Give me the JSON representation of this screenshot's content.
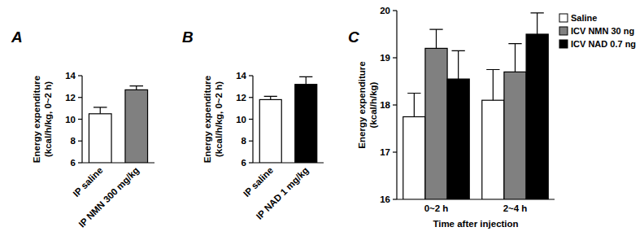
{
  "chart_data": [
    {
      "type": "bar",
      "title": "A",
      "y_label": "Energy expenditure\n(kcal/h/kg, 0~2 h)",
      "categories": [
        "IP saline",
        "IP NMN 300 mg/kg"
      ],
      "values": [
        10.5,
        12.7
      ],
      "errors": [
        0.6,
        0.35
      ],
      "colors": [
        "#ffffff",
        "#808080"
      ],
      "ylim": [
        6,
        14
      ],
      "yticks": [
        6,
        8,
        10,
        12,
        14
      ],
      "grid": false
    },
    {
      "type": "bar",
      "title": "B",
      "y_label": "Energy expenditure\n(kcal/h/kg, 0~2 h)",
      "categories": [
        "IP saline",
        "IP NAD 1 mg/kg"
      ],
      "values": [
        11.8,
        13.2
      ],
      "errors": [
        0.3,
        0.7
      ],
      "colors": [
        "#ffffff",
        "#000000"
      ],
      "ylim": [
        6,
        14
      ],
      "yticks": [
        6,
        8,
        10,
        12,
        14
      ],
      "grid": false
    },
    {
      "type": "bar",
      "title": "C",
      "y_label": "Energy expenditure\n(kcal/h/kg)",
      "x_label": "Time after injection",
      "categories": [
        "0~2 h",
        "2~4 h"
      ],
      "series": [
        {
          "name": "Saline",
          "color": "#ffffff",
          "values": [
            17.75,
            18.1
          ],
          "errors": [
            0.5,
            0.65
          ]
        },
        {
          "name": "ICV NMN 30 ng",
          "color": "#808080",
          "values": [
            19.2,
            18.7
          ],
          "errors": [
            0.4,
            0.6
          ]
        },
        {
          "name": "ICV NAD 0.7 ng",
          "color": "#000000",
          "values": [
            18.55,
            19.5
          ],
          "errors": [
            0.6,
            0.45
          ]
        }
      ],
      "ylim": [
        16,
        20
      ],
      "yticks": [
        16,
        17,
        18,
        19,
        20
      ],
      "grid": false,
      "legend": "right"
    }
  ]
}
